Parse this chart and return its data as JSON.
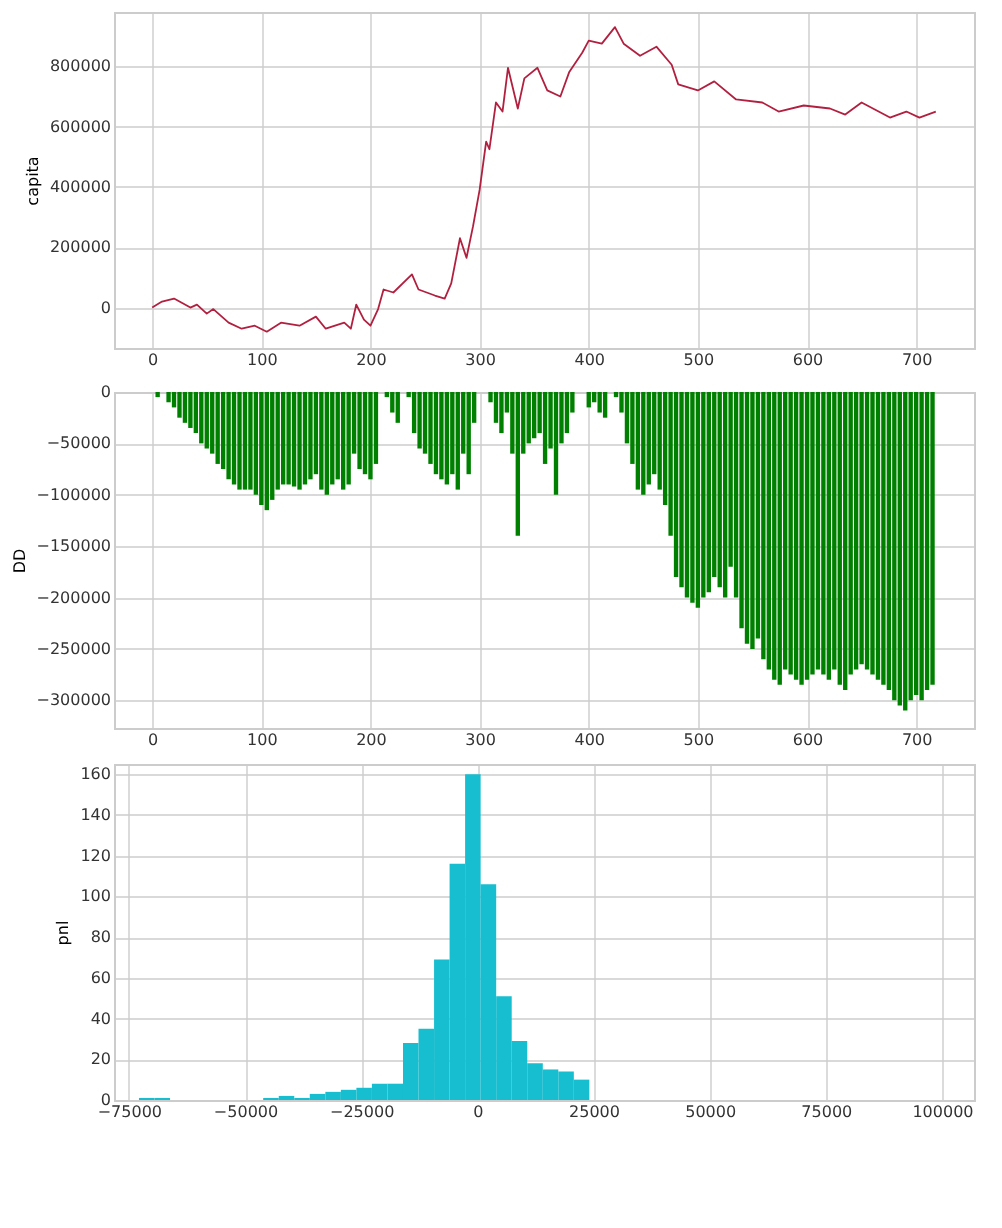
{
  "chart_data": [
    {
      "type": "line",
      "ylabel": "capita",
      "grid": true,
      "xlim": [
        -35,
        753
      ],
      "ylim": [
        -134000,
        980000
      ],
      "xticks": [
        0,
        100,
        200,
        300,
        400,
        500,
        600,
        700
      ],
      "yticks": [
        0,
        200000,
        400000,
        600000,
        800000
      ],
      "x": [
        0,
        9,
        20,
        35,
        41,
        50,
        56,
        70,
        82,
        94,
        105,
        118,
        135,
        150,
        159,
        176,
        182,
        187,
        194,
        200,
        207,
        212,
        221,
        238,
        244,
        259,
        268,
        274,
        282,
        288,
        294,
        300,
        306,
        309,
        315,
        321,
        326,
        335,
        341,
        353,
        362,
        374,
        382,
        394,
        400,
        412,
        424,
        432,
        447,
        462,
        476,
        482,
        500,
        515,
        535,
        559,
        574,
        597,
        621,
        635,
        650,
        676,
        691,
        703,
        718
      ],
      "series": [
        {
          "color": "#b22040",
          "values": [
            0,
            20000,
            30000,
            0,
            10000,
            -20000,
            -5000,
            -50000,
            -70000,
            -60000,
            -80000,
            -50000,
            -60000,
            -30000,
            -70000,
            -50000,
            -70000,
            10000,
            -40000,
            -60000,
            -5000,
            60000,
            50000,
            110000,
            60000,
            40000,
            30000,
            80000,
            230000,
            165000,
            270000,
            390000,
            550000,
            525000,
            680000,
            650000,
            795000,
            660000,
            760000,
            795000,
            720000,
            700000,
            780000,
            845000,
            885000,
            875000,
            930000,
            875000,
            835000,
            865000,
            805000,
            740000,
            720000,
            750000,
            690000,
            680000,
            650000,
            670000,
            660000,
            640000,
            680000,
            630000,
            650000,
            630000,
            650000
          ]
        }
      ]
    },
    {
      "type": "bar",
      "ylabel": "DD",
      "grid": true,
      "xlim": [
        -35,
        753
      ],
      "ylim": [
        -327000,
        0
      ],
      "xticks": [
        0,
        100,
        200,
        300,
        400,
        500,
        600,
        700
      ],
      "yticks": [
        0,
        -50000,
        -100000,
        -150000,
        -200000,
        -250000,
        -300000
      ],
      "x": [
        0,
        5,
        10,
        15,
        20,
        25,
        30,
        35,
        40,
        45,
        50,
        55,
        60,
        65,
        70,
        75,
        80,
        85,
        90,
        95,
        100,
        105,
        110,
        115,
        120,
        125,
        130,
        135,
        140,
        145,
        150,
        155,
        160,
        165,
        170,
        175,
        180,
        185,
        190,
        195,
        200,
        205,
        210,
        215,
        220,
        225,
        230,
        235,
        240,
        245,
        250,
        255,
        260,
        265,
        270,
        275,
        280,
        285,
        290,
        295,
        300,
        305,
        310,
        315,
        320,
        325,
        330,
        335,
        340,
        345,
        350,
        355,
        360,
        365,
        370,
        375,
        380,
        385,
        390,
        395,
        400,
        405,
        410,
        415,
        420,
        425,
        430,
        435,
        440,
        445,
        450,
        455,
        460,
        465,
        470,
        475,
        480,
        485,
        490,
        495,
        500,
        505,
        510,
        515,
        520,
        525,
        530,
        535,
        540,
        545,
        550,
        555,
        560,
        565,
        570,
        575,
        580,
        585,
        590,
        595,
        600,
        605,
        610,
        615,
        620,
        625,
        630,
        635,
        640,
        645,
        650,
        655,
        660,
        665,
        670,
        675,
        680,
        685,
        690,
        695,
        700,
        705,
        710,
        715
      ],
      "series": [
        {
          "color": "#008000",
          "values": [
            0,
            -5000,
            0,
            -10000,
            -15000,
            -25000,
            -30000,
            -35000,
            -40000,
            -50000,
            -55000,
            -60000,
            -70000,
            -75000,
            -85000,
            -90000,
            -95000,
            -95000,
            -95000,
            -100000,
            -110000,
            -115000,
            -105000,
            -95000,
            -90000,
            -90000,
            -92000,
            -95000,
            -90000,
            -85000,
            -80000,
            -95000,
            -100000,
            -90000,
            -85000,
            -95000,
            -90000,
            -60000,
            -75000,
            -80000,
            -85000,
            -70000,
            0,
            -5000,
            -20000,
            -30000,
            0,
            -5000,
            -40000,
            -55000,
            -60000,
            -70000,
            -80000,
            -85000,
            -90000,
            -80000,
            -95000,
            -60000,
            -80000,
            -30000,
            0,
            0,
            -10000,
            -30000,
            -40000,
            -20000,
            -60000,
            -140000,
            -60000,
            -50000,
            -45000,
            -40000,
            -70000,
            -55000,
            -100000,
            -50000,
            -40000,
            -20000,
            0,
            0,
            -15000,
            -10000,
            -20000,
            -25000,
            0,
            -5000,
            -20000,
            -50000,
            -70000,
            -95000,
            -100000,
            -90000,
            -80000,
            -95000,
            -110000,
            -140000,
            -180000,
            -190000,
            -200000,
            -205000,
            -210000,
            -200000,
            -195000,
            -180000,
            -190000,
            -200000,
            -170000,
            -200000,
            -230000,
            -245000,
            -250000,
            -240000,
            -260000,
            -270000,
            -280000,
            -285000,
            -270000,
            -275000,
            -280000,
            -285000,
            -280000,
            -275000,
            -270000,
            -275000,
            -280000,
            -270000,
            -285000,
            -290000,
            -275000,
            -270000,
            -265000,
            -270000,
            -275000,
            -280000,
            -285000,
            -290000,
            -300000,
            -305000,
            -310000,
            -300000,
            -295000,
            -300000,
            -290000,
            -285000
          ]
        }
      ]
    },
    {
      "type": "histogram",
      "ylabel": "pnl",
      "grid": true,
      "xlim": [
        -78200,
        106900
      ],
      "ylim": [
        0,
        165
      ],
      "xticks": [
        -75000,
        -50000,
        -25000,
        0,
        25000,
        50000,
        75000,
        100000
      ],
      "yticks": [
        0,
        20,
        40,
        60,
        80,
        100,
        120,
        140,
        160
      ],
      "color": "#17becf",
      "bins": [
        -72830,
        -69490,
        -66140,
        -62800,
        -59460,
        -56110,
        -52770,
        -49430,
        -46090,
        -42740,
        -39400,
        -36060,
        -32710,
        -29370,
        -26030,
        -22690,
        -19340,
        -16000,
        -12660,
        -9310,
        -5970,
        -2630,
        710,
        4060,
        7400,
        10740,
        14090,
        17430,
        20770,
        24110
      ],
      "values": [
        1,
        1,
        0,
        0,
        0,
        0,
        0,
        0,
        1,
        2,
        1,
        3,
        4,
        5,
        6,
        8,
        8,
        28,
        35,
        69,
        116,
        160,
        106,
        51,
        29,
        18,
        15,
        14,
        10
      ]
    }
  ]
}
